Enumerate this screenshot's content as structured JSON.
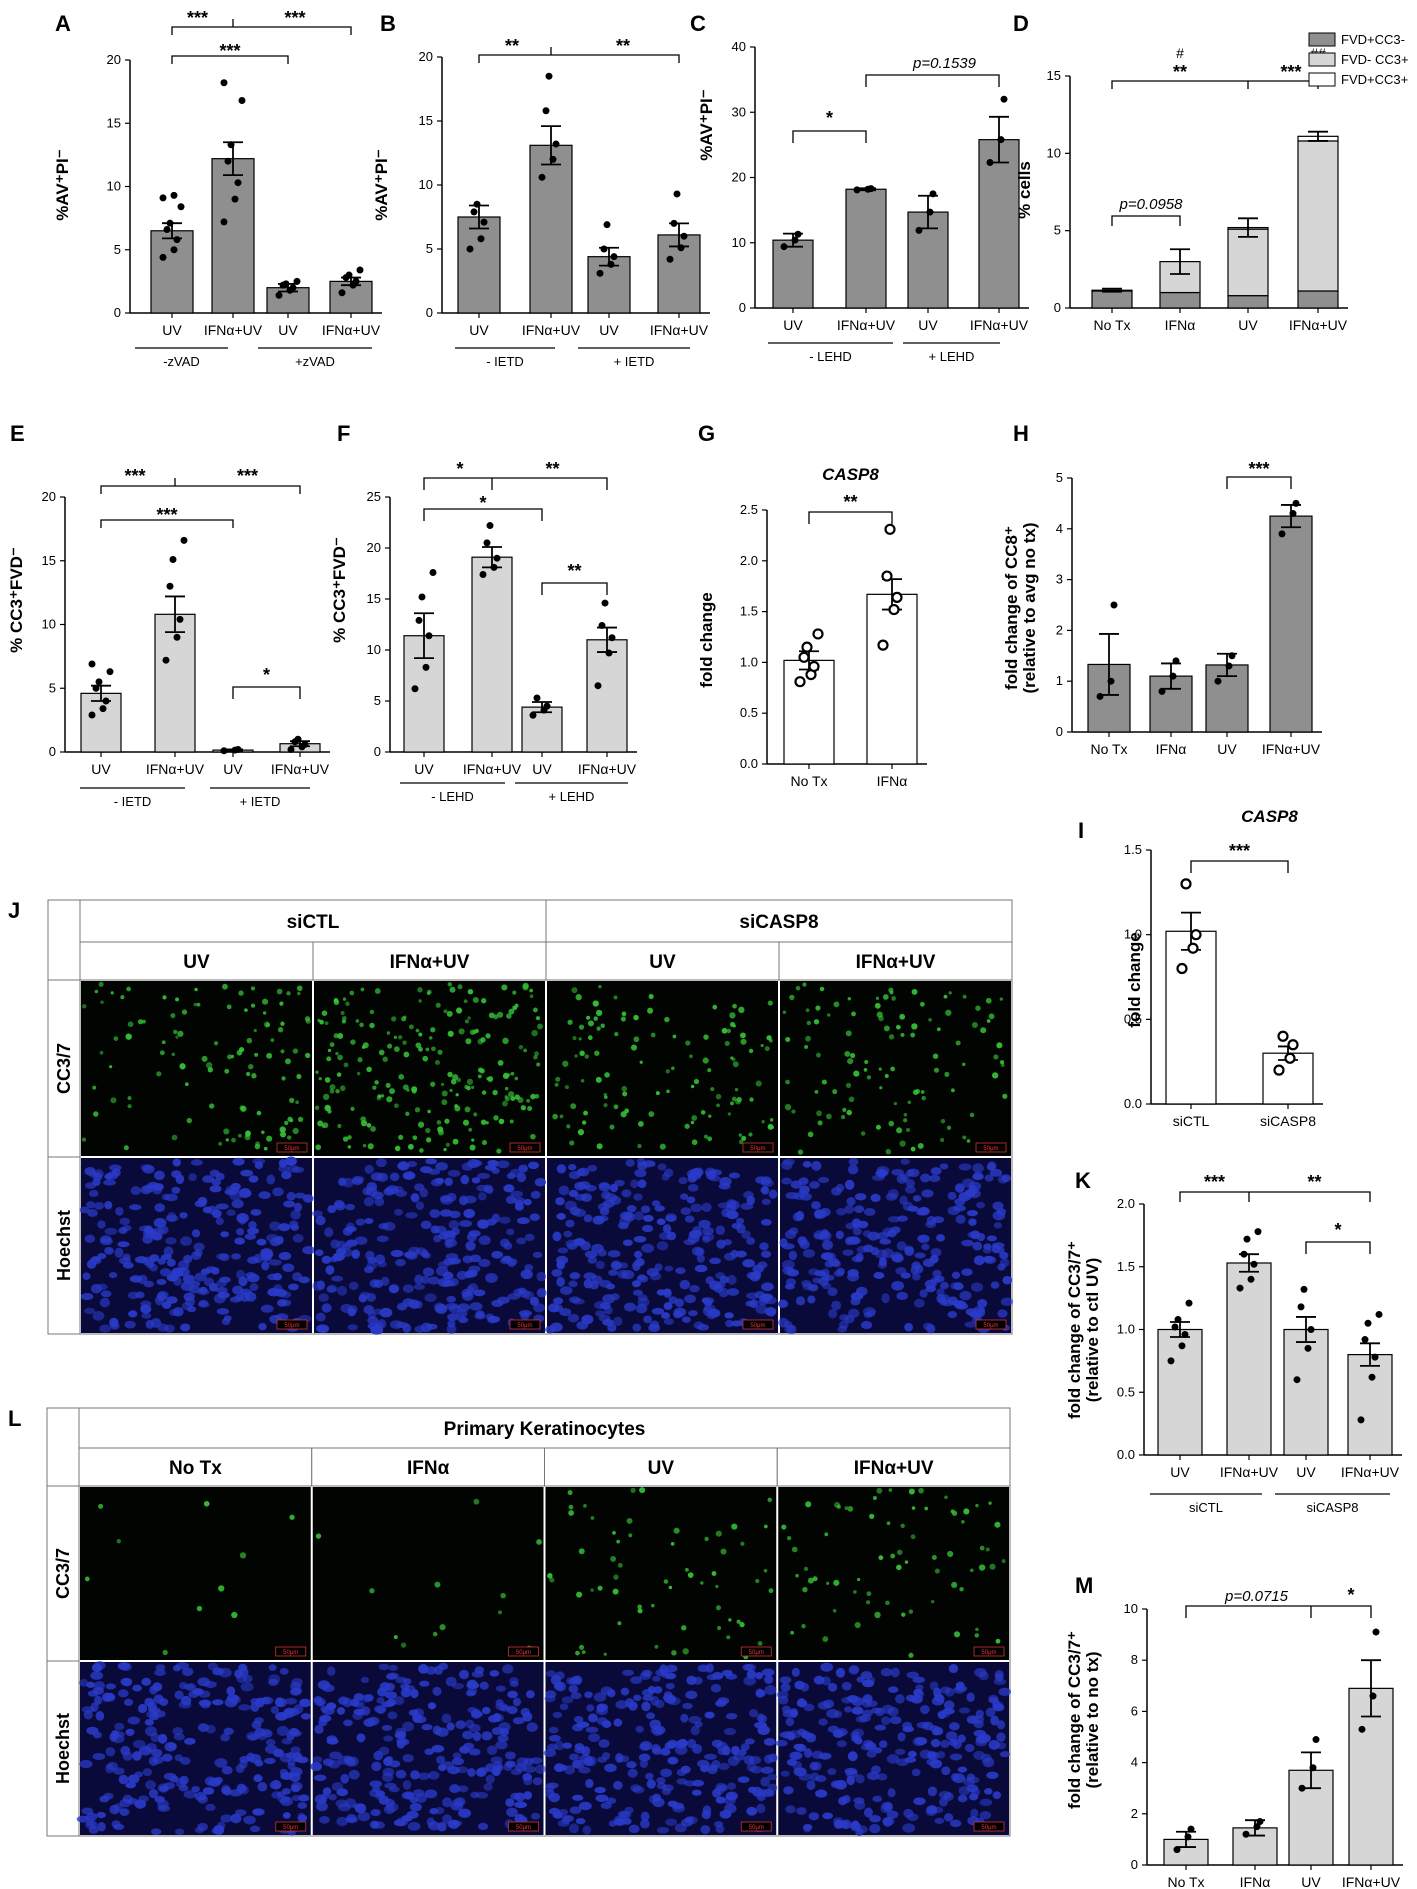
{
  "colors": {
    "dark_bar": "#8f8f8f",
    "light_bar": "#d6d6d6",
    "white_bar": "#ffffff",
    "green": "#36c437",
    "blue": "#2a3bc9"
  },
  "chart_data": [
    {
      "id": "A",
      "type": "bar",
      "categories": [
        "UV",
        "IFNα+UV",
        "UV",
        "IFNα+UV"
      ],
      "groups": [
        "-zVAD",
        "+zVAD"
      ],
      "values": [
        6.5,
        12.2,
        2.0,
        2.5
      ],
      "errors": [
        0.6,
        1.3,
        0.3,
        0.3
      ],
      "points": [
        [
          4.4,
          5.0,
          5.8,
          6.6,
          7.1,
          8.4,
          9.1,
          9.3
        ],
        [
          7.2,
          9.0,
          10.3,
          12.0,
          13.3,
          16.8,
          18.2
        ],
        [
          1.4,
          1.8,
          2.0,
          2.2,
          2.3,
          2.5
        ],
        [
          1.6,
          2.2,
          2.5,
          2.8,
          3.0,
          3.4
        ]
      ],
      "ylim": [
        0,
        20
      ],
      "yticks": [
        0,
        5,
        10,
        15,
        20
      ],
      "ylabel": "%AV⁺PI⁻",
      "color": "dark",
      "sig": [
        {
          "a": 0,
          "b": 2,
          "label": "***",
          "row": 1
        },
        {
          "a": 0,
          "b": 3,
          "label": "***",
          "row": 2,
          "mid": 1
        },
        {
          "a": 1,
          "b": 3,
          "label": "***",
          "row": 2,
          "mid": 1,
          "right": true
        }
      ]
    },
    {
      "id": "B",
      "type": "bar",
      "categories": [
        "UV",
        "IFNα+UV",
        "UV",
        "IFNα+UV"
      ],
      "groups": [
        "- IETD",
        "+ IETD"
      ],
      "values": [
        7.5,
        13.1,
        4.4,
        6.1
      ],
      "errors": [
        0.9,
        1.5,
        0.7,
        0.9
      ],
      "points": [
        [
          5.0,
          5.8,
          7.1,
          7.9,
          8.5
        ],
        [
          10.6,
          12.0,
          13.2,
          15.8,
          18.5
        ],
        [
          3.1,
          3.8,
          4.4,
          5.0,
          6.9
        ],
        [
          4.2,
          5.1,
          6.0,
          7.0,
          9.3
        ]
      ],
      "ylim": [
        0,
        20
      ],
      "yticks": [
        0,
        5,
        10,
        15,
        20
      ],
      "ylabel": "%AV⁺PI⁻",
      "color": "dark",
      "sig": [
        {
          "a": 0,
          "b": 3,
          "label": "**",
          "row": 1,
          "split": 1
        }
      ]
    },
    {
      "id": "C",
      "type": "bar",
      "categories": [
        "UV",
        "IFNα+UV",
        "UV",
        "IFNα+UV"
      ],
      "groups": [
        "- LEHD",
        "+ LEHD"
      ],
      "values": [
        10.4,
        18.2,
        14.7,
        25.8
      ],
      "errors": [
        1.0,
        0.15,
        2.5,
        3.5
      ],
      "points": [
        [
          9.4,
          10.4,
          11.3
        ],
        [
          18.1,
          18.2,
          18.3
        ],
        [
          11.9,
          14.7,
          17.5
        ],
        [
          22.3,
          25.8,
          32.0
        ]
      ],
      "ylim": [
        0,
        40
      ],
      "yticks": [
        0,
        10,
        20,
        30,
        40
      ],
      "ylabel": "%AV⁺PI⁻",
      "color": "dark",
      "annotations": [
        "*",
        "p=0.1539"
      ]
    },
    {
      "id": "D",
      "type": "stacked-bar",
      "categories": [
        "No Tx",
        "IFNα",
        "UV",
        "IFNα+UV"
      ],
      "series": [
        {
          "name": "FVD+CC3-",
          "values": [
            1.1,
            1.0,
            0.8,
            1.1
          ],
          "color": "dark"
        },
        {
          "name": "FVD- CC3+",
          "values": [
            0.05,
            2.0,
            4.3,
            9.7
          ],
          "color": "light"
        },
        {
          "name": "FVD+CC3+",
          "values": [
            0.0,
            0.0,
            0.1,
            0.3
          ],
          "color": "white"
        }
      ],
      "ylim": [
        0,
        15
      ],
      "yticks": [
        0,
        5,
        10,
        15
      ],
      "ylabel": "% cells",
      "annotations": [
        "**",
        "***",
        "#",
        "##",
        "p=0.0958"
      ]
    },
    {
      "id": "E",
      "type": "bar",
      "categories": [
        "UV",
        "IFNα+UV",
        "UV",
        "IFNα+UV"
      ],
      "groups": [
        "- IETD",
        "+ IETD"
      ],
      "values": [
        4.6,
        10.8,
        0.15,
        0.65
      ],
      "errors": [
        0.6,
        1.4,
        0.05,
        0.2
      ],
      "points": [
        [
          2.9,
          3.4,
          4.0,
          5.0,
          5.5,
          6.3,
          6.9
        ],
        [
          7.2,
          9.0,
          10.4,
          13.0,
          15.1,
          16.6
        ],
        [
          0.1,
          0.15,
          0.2
        ],
        [
          0.2,
          0.4,
          0.6,
          0.8,
          1.0
        ]
      ],
      "ylim": [
        0,
        20
      ],
      "yticks": [
        0,
        5,
        10,
        15,
        20
      ],
      "ylabel": "% CC3⁺FVD⁻",
      "color": "light",
      "annotations": [
        "***",
        "***",
        "***",
        "*"
      ]
    },
    {
      "id": "F",
      "type": "bar",
      "categories": [
        "UV",
        "IFNα+UV",
        "UV",
        "IFNα+UV"
      ],
      "groups": [
        "- LEHD",
        "+ LEHD"
      ],
      "values": [
        11.4,
        19.1,
        4.4,
        11.0
      ],
      "errors": [
        2.2,
        1.0,
        0.5,
        1.2
      ],
      "points": [
        [
          6.2,
          8.3,
          11.4,
          12.9,
          15.2,
          17.6
        ],
        [
          17.4,
          18.1,
          19.0,
          20.5,
          22.2
        ],
        [
          3.6,
          4.1,
          4.5,
          5.3
        ],
        [
          6.5,
          9.7,
          11.2,
          12.4,
          14.6
        ]
      ],
      "ylim": [
        0,
        25
      ],
      "yticks": [
        0,
        5,
        10,
        15,
        20,
        25
      ],
      "ylabel": "% CC3⁺FVD⁻",
      "color": "light",
      "annotations": [
        "*",
        "**",
        "*",
        "**"
      ]
    },
    {
      "id": "G",
      "type": "bar",
      "title": "CASP8",
      "categories": [
        "No Tx",
        "IFNα"
      ],
      "values": [
        1.02,
        1.67
      ],
      "errors": [
        0.09,
        0.15
      ],
      "points": [
        [
          0.81,
          0.88,
          0.96,
          1.05,
          1.15,
          1.28
        ],
        [
          1.17,
          1.52,
          1.64,
          1.85,
          2.31
        ]
      ],
      "ylim": [
        0,
        2.5
      ],
      "yticks": [
        "0.0",
        "0.5",
        "1.0",
        "1.5",
        "2.0",
        "2.5"
      ],
      "ylabel": "fold change",
      "color": "white",
      "annotations": [
        "**"
      ]
    },
    {
      "id": "H",
      "type": "bar",
      "categories": [
        "No Tx",
        "IFNα",
        "UV",
        "IFNα+UV"
      ],
      "values": [
        1.33,
        1.1,
        1.32,
        4.25
      ],
      "errors": [
        0.6,
        0.25,
        0.22,
        0.22
      ],
      "points": [
        [
          0.7,
          1.0,
          2.5
        ],
        [
          0.8,
          1.1,
          1.4
        ],
        [
          1.0,
          1.3,
          1.5
        ],
        [
          3.9,
          4.3,
          4.5
        ]
      ],
      "ylim": [
        0,
        5
      ],
      "yticks": [
        0,
        1,
        2,
        3,
        4,
        5
      ],
      "ylabel": "fold change of CC8⁺",
      "ylabel2": "(relative to avg no tx)",
      "color": "dark",
      "annotations": [
        "***"
      ]
    },
    {
      "id": "I",
      "type": "bar",
      "title": "CASP8",
      "categories": [
        "siCTL",
        "siCASP8"
      ],
      "values": [
        1.02,
        0.3
      ],
      "errors": [
        0.11,
        0.04
      ],
      "points": [
        [
          0.8,
          0.92,
          1.0,
          1.3
        ],
        [
          0.2,
          0.27,
          0.35,
          0.4
        ]
      ],
      "ylim": [
        0,
        1.5
      ],
      "yticks": [
        "0.0",
        "0.5",
        "1.0",
        "1.5"
      ],
      "ylabel": "fold change",
      "color": "white",
      "annotations": [
        "***"
      ]
    },
    {
      "id": "K",
      "type": "bar",
      "categories": [
        "UV",
        "IFNα+UV",
        "UV",
        "IFNα+UV"
      ],
      "groups": [
        "siCTL",
        "siCASP8"
      ],
      "values": [
        1.0,
        1.53,
        1.0,
        0.8
      ],
      "errors": [
        0.06,
        0.07,
        0.1,
        0.09
      ],
      "points": [
        [
          0.75,
          0.87,
          0.96,
          1.02,
          1.08,
          1.21
        ],
        [
          1.33,
          1.4,
          1.52,
          1.6,
          1.72,
          1.78
        ],
        [
          0.6,
          0.85,
          1.0,
          1.18,
          1.32
        ],
        [
          0.28,
          0.62,
          0.78,
          0.92,
          1.05,
          1.12
        ]
      ],
      "ylim": [
        0,
        2.0
      ],
      "yticks": [
        "0.0",
        "0.5",
        "1.0",
        "1.5",
        "2.0"
      ],
      "ylabel": "fold change of CC3/7⁺",
      "ylabel2": "(relative to ctl UV)",
      "color": "light",
      "annotations": [
        "***",
        "**",
        "*"
      ]
    },
    {
      "id": "M",
      "type": "bar",
      "categories": [
        "No Tx",
        "IFNα",
        "UV",
        "IFNα+UV"
      ],
      "values": [
        1.0,
        1.45,
        3.7,
        6.9
      ],
      "errors": [
        0.3,
        0.3,
        0.7,
        1.1
      ],
      "points": [
        [
          0.6,
          1.1,
          1.4
        ],
        [
          1.2,
          1.5,
          1.7
        ],
        [
          3.0,
          3.8,
          4.9
        ],
        [
          5.3,
          6.6,
          9.1
        ]
      ],
      "ylim": [
        0,
        10
      ],
      "yticks": [
        0,
        2,
        4,
        6,
        8,
        10
      ],
      "ylabel": "fold change of CC3/7⁺",
      "ylabel2": "(relative to no tx)",
      "color": "light",
      "annotations": [
        "p=0.0715",
        "*"
      ]
    }
  ],
  "panel_labels": [
    "A",
    "B",
    "C",
    "D",
    "E",
    "F",
    "G",
    "H",
    "I",
    "J",
    "K",
    "L",
    "M"
  ],
  "texts": {
    "groups": {
      "minus_zvad": "-zVAD",
      "plus_zvad": "+zVAD",
      "minus_ietd": "- IETD",
      "plus_ietd": "+ IETD",
      "minus_lehd": "- LEHD",
      "plus_lehd": "+ LEHD",
      "sictl": "siCTL",
      "sicasp8": "siCASP8"
    },
    "sig": {
      "s1": "*",
      "s2": "**",
      "s3": "***",
      "p1539": "p=0.1539",
      "p0958": "p=0.0958",
      "p0715": "p=0.0715",
      "h1": "#",
      "h2": "##"
    },
    "legend": [
      "FVD+CC3-",
      "FVD- CC3+",
      "FVD+CC3+"
    ]
  },
  "micro_J": {
    "header1": [
      "siCTL",
      "siCASP8"
    ],
    "header2": [
      "UV",
      "IFNα+UV",
      "UV",
      "IFNα+UV"
    ],
    "rows": [
      "CC3/7",
      "Hoechst"
    ],
    "scale": "50μm"
  },
  "micro_L": {
    "header1": "Primary Keratinocytes",
    "header2": [
      "No Tx",
      "IFNα",
      "UV",
      "IFNα+UV"
    ],
    "rows": [
      "CC3/7",
      "Hoechst"
    ],
    "scale": "50μm"
  }
}
